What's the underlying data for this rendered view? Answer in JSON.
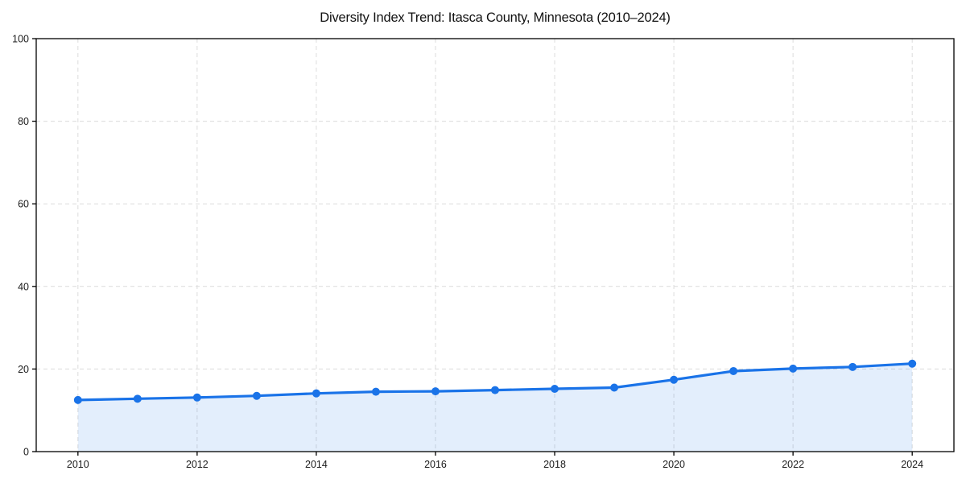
{
  "chart_data": {
    "type": "area",
    "title": "Diversity Index Trend: Itasca County, Minnesota (2010–2024)",
    "xlabel": "",
    "ylabel": "",
    "x": [
      2010,
      2011,
      2012,
      2013,
      2014,
      2015,
      2016,
      2017,
      2018,
      2019,
      2020,
      2021,
      2022,
      2023,
      2024
    ],
    "series": [
      {
        "name": "Diversity Index",
        "values": [
          12.5,
          12.8,
          13.1,
          13.5,
          14.1,
          14.5,
          14.6,
          14.9,
          15.2,
          15.5,
          17.4,
          19.5,
          20.1,
          20.5,
          21.3
        ]
      }
    ],
    "xlim": [
      2009.3,
      2024.7
    ],
    "ylim": [
      0,
      100
    ],
    "xticks": [
      2010,
      2012,
      2014,
      2016,
      2018,
      2020,
      2022,
      2024
    ],
    "yticks": [
      0,
      20,
      40,
      60,
      80,
      100
    ],
    "grid": true,
    "grid_style": "dashed",
    "legend": false,
    "marker": "circle",
    "colors": {
      "line": "#1a73e8",
      "marker": "#1a73e8",
      "area_fill": "rgba(26,115,232,0.12)",
      "grid": "#dcdcdc",
      "spine": "#000000",
      "tick_text": "#1a1a1a",
      "title_text": "#111111",
      "background": "#ffffff"
    }
  }
}
